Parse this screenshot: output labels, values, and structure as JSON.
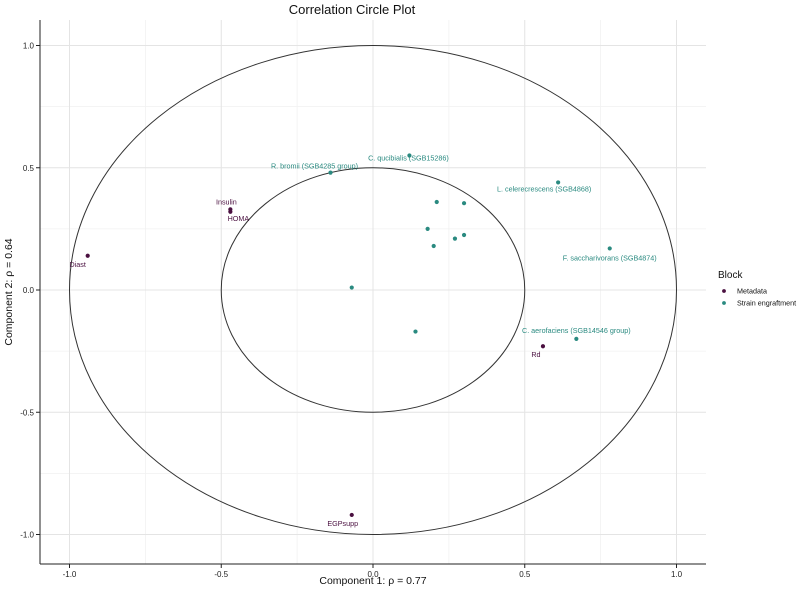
{
  "chart_data": {
    "type": "scatter",
    "title": "Correlation Circle Plot",
    "xlabel": "Component 1:  ρ = 0.77",
    "ylabel": "Component 2:  ρ = 0.64",
    "xlim": [
      -1.1,
      1.1
    ],
    "ylim": [
      -1.1,
      1.1
    ],
    "x_ticks": [
      -1.0,
      -0.5,
      0.0,
      0.5,
      1.0
    ],
    "y_ticks": [
      -1.0,
      -0.5,
      0.0,
      0.5,
      1.0
    ],
    "x_tick_labels": [
      "-1.0",
      "-0.5",
      "0.0",
      "0.5",
      "1.0"
    ],
    "y_tick_labels": [
      "-1.0",
      "-0.5",
      "0.0",
      "0.5",
      "1.0"
    ],
    "grid": true,
    "circles": [
      1.0,
      0.5
    ],
    "legend": {
      "title": "Block",
      "position": "right",
      "entries": [
        {
          "name": "Metadata",
          "color": "#4a1040"
        },
        {
          "name": "Strain engraftment",
          "color": "#2a8a80"
        }
      ]
    },
    "series": [
      {
        "name": "Metadata",
        "color": "#4a1040",
        "points": [
          {
            "x": -0.47,
            "y": 0.33,
            "label": "Insulin"
          },
          {
            "x": -0.47,
            "y": 0.32,
            "label": "HOMA"
          },
          {
            "x": -0.94,
            "y": 0.14,
            "label": "Diast"
          },
          {
            "x": 0.56,
            "y": -0.23,
            "label": "Rd"
          },
          {
            "x": -0.07,
            "y": -0.92,
            "label": "EGPsupp"
          }
        ]
      },
      {
        "name": "Strain engraftment",
        "color": "#2a8a80",
        "points": [
          {
            "x": -0.14,
            "y": 0.48,
            "label": "R. bromii (SGB4285 group)"
          },
          {
            "x": 0.12,
            "y": 0.55,
            "label": "C. qucibialis (SGB15286)"
          },
          {
            "x": 0.61,
            "y": 0.44,
            "label": "L. celerecrescens (SGB4868)"
          },
          {
            "x": 0.78,
            "y": 0.17,
            "label": "F. saccharivorans (SGB4874)"
          },
          {
            "x": 0.67,
            "y": -0.2,
            "label": "C. aerofaciens (SGB14546 group)"
          },
          {
            "x": 0.21,
            "y": 0.36,
            "label": ""
          },
          {
            "x": 0.3,
            "y": 0.355,
            "label": ""
          },
          {
            "x": 0.18,
            "y": 0.25,
            "label": ""
          },
          {
            "x": 0.3,
            "y": 0.225,
            "label": ""
          },
          {
            "x": 0.27,
            "y": 0.21,
            "label": ""
          },
          {
            "x": 0.2,
            "y": 0.18,
            "label": ""
          },
          {
            "x": -0.07,
            "y": 0.01,
            "label": ""
          },
          {
            "x": 0.14,
            "y": -0.17,
            "label": ""
          }
        ]
      }
    ]
  }
}
